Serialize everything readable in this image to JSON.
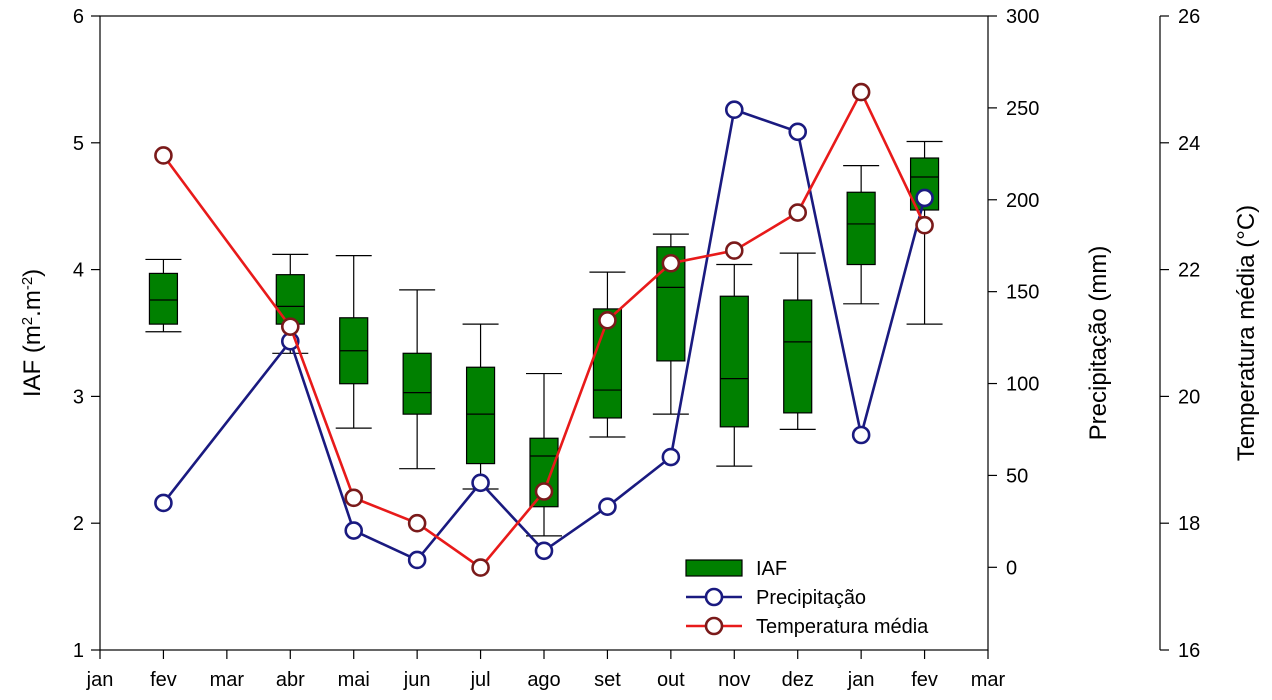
{
  "chart_data": {
    "type": "box+line",
    "categories": [
      "jan",
      "fev",
      "mar",
      "abr",
      "mai",
      "jun",
      "jul",
      "ago",
      "set",
      "out",
      "nov",
      "dez",
      "jan",
      "fev",
      "mar"
    ],
    "axes": {
      "left": {
        "label_main": "IAF (m",
        "label_sup1": "2",
        "label_mid": ".m",
        "label_sup2": "-2",
        "label_end": ")",
        "min": 1,
        "max": 6,
        "ticks": [
          1,
          2,
          3,
          4,
          5,
          6
        ],
        "tick_labels": [
          "1",
          "2",
          "3",
          "4",
          "5",
          "6"
        ]
      },
      "right1": {
        "label": "Precipitação (mm)",
        "min": -45,
        "max": 300,
        "ticks": [
          0,
          50,
          100,
          150,
          200,
          250,
          300
        ],
        "tick_labels": [
          "0",
          "50",
          "100",
          "150",
          "200",
          "250",
          "300"
        ]
      },
      "right2": {
        "label": "Temperatura média (°C)",
        "min": 16,
        "max": 26,
        "ticks": [
          16,
          18,
          20,
          22,
          24,
          26
        ],
        "tick_labels": [
          "16",
          "18",
          "20",
          "22",
          "24",
          "26"
        ]
      }
    },
    "boxes": [
      {
        "x": 1,
        "low": 3.51,
        "q1": 3.57,
        "median": 3.76,
        "q3": 3.97,
        "high": 4.08
      },
      {
        "x": 3,
        "low": 3.34,
        "q1": 3.57,
        "median": 3.71,
        "q3": 3.96,
        "high": 4.12
      },
      {
        "x": 4,
        "low": 2.75,
        "q1": 3.1,
        "median": 3.36,
        "q3": 3.62,
        "high": 4.11
      },
      {
        "x": 5,
        "low": 2.43,
        "q1": 2.86,
        "median": 3.03,
        "q3": 3.34,
        "high": 3.84
      },
      {
        "x": 6,
        "low": 2.27,
        "q1": 2.47,
        "median": 2.86,
        "q3": 3.23,
        "high": 3.57
      },
      {
        "x": 7,
        "low": 1.9,
        "q1": 2.13,
        "median": 2.53,
        "q3": 2.67,
        "high": 3.18
      },
      {
        "x": 8,
        "low": 2.68,
        "q1": 2.83,
        "median": 3.05,
        "q3": 3.69,
        "high": 3.98
      },
      {
        "x": 9,
        "low": 2.86,
        "q1": 3.28,
        "median": 3.86,
        "q3": 4.18,
        "high": 4.28
      },
      {
        "x": 10,
        "low": 2.45,
        "q1": 2.76,
        "median": 3.14,
        "q3": 3.79,
        "high": 4.04
      },
      {
        "x": 11,
        "low": 2.74,
        "q1": 2.87,
        "median": 3.43,
        "q3": 3.76,
        "high": 4.13
      },
      {
        "x": 12,
        "low": 3.73,
        "q1": 4.04,
        "median": 4.36,
        "q3": 4.61,
        "high": 4.82
      },
      {
        "x": 13,
        "low": 3.57,
        "q1": 4.47,
        "median": 4.73,
        "q3": 4.88,
        "high": 5.01
      }
    ],
    "series": [
      {
        "name": "Precipitação",
        "axis": "right1",
        "x": [
          1,
          3,
          4,
          5,
          6,
          7,
          8,
          9,
          10,
          11,
          12,
          13
        ],
        "values": [
          35,
          123,
          20,
          4,
          46,
          9,
          33,
          60,
          249,
          237,
          72,
          201
        ]
      },
      {
        "name": "Temperatura média",
        "axis": "right2",
        "x": [
          1,
          3,
          4,
          5,
          6,
          7,
          8,
          9,
          10,
          11,
          12,
          13
        ],
        "values": [
          23.8,
          21.1,
          18.4,
          18.0,
          17.3,
          18.5,
          21.2,
          22.1,
          22.3,
          22.9,
          24.8,
          22.7
        ]
      }
    ],
    "legend": {
      "position": "bottom-right",
      "items": [
        {
          "label": "IAF",
          "kind": "box"
        },
        {
          "label": "Precipitação",
          "kind": "line-blue"
        },
        {
          "label": "Temperatura média",
          "kind": "line-red"
        }
      ]
    },
    "colors": {
      "box_fill": "#008000",
      "box_stroke": "#000000",
      "precip": "#1a1a80",
      "temp": "#e81a1a",
      "temp_marker": "#7a1a1a",
      "axis": "#000000"
    }
  }
}
